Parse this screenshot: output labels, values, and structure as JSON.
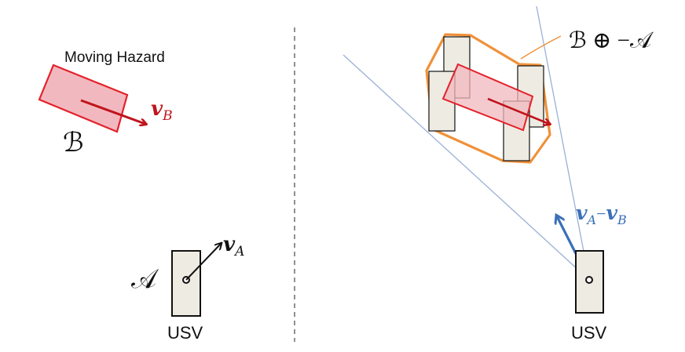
{
  "left_panel": {
    "hazard_caption": "Moving Hazard",
    "hazard_symbol": "ℬ",
    "hazard_velocity": {
      "vector": "v",
      "subscript": "B"
    },
    "usv_symbol": "𝒜",
    "usv_velocity": {
      "vector": "v",
      "subscript": "A"
    },
    "usv_caption": "USV"
  },
  "right_panel": {
    "minkowski_label": "ℬ ⊕ −𝒜",
    "relative_velocity": {
      "vector_a": "v",
      "subscript_a": "A",
      "minus": "−",
      "vector_b": "v",
      "subscript_b": "B"
    },
    "usv_caption": "USV"
  },
  "colors": {
    "hazard_fill": "#f2b8bf",
    "hazard_stroke": "#e3222b",
    "hazard_arrow": "#c0141c",
    "usv_fill": "#eeebe2",
    "usv_stroke": "#111111",
    "minkowski_outline": "#f0913a",
    "cone_line": "#9ab0d6",
    "relative_velocity": "#3a70b8",
    "divider": "#555555"
  }
}
